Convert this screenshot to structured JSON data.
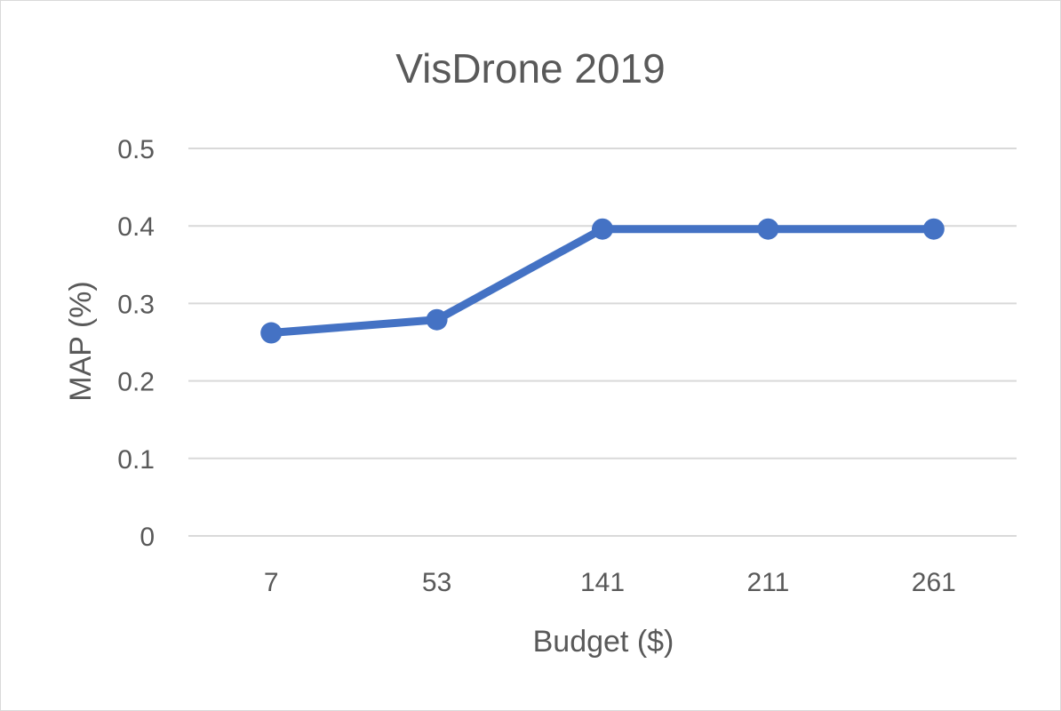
{
  "chart_data": {
    "type": "line",
    "title": "VisDrone 2019",
    "xlabel": "Budget ($)",
    "ylabel": "MAP (%)",
    "categories": [
      "7",
      "53",
      "141",
      "211",
      "261"
    ],
    "series": [
      {
        "values": [
          0.262,
          0.279,
          0.396,
          0.396,
          0.396
        ]
      }
    ],
    "ylim": [
      0,
      0.5
    ],
    "yticks": [
      "0",
      "0.1",
      "0.2",
      "0.3",
      "0.4",
      "0.5"
    ],
    "grid": true,
    "legend": "none",
    "colors": {
      "series": "#4472c4",
      "grid": "#d9d9d9",
      "text": "#595959"
    }
  }
}
